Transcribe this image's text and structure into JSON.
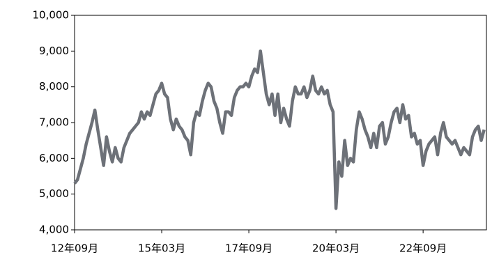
{
  "chart_data": {
    "type": "line",
    "categories": [
      "12年09月",
      null,
      null,
      null,
      null,
      null,
      null,
      null,
      null,
      null,
      null,
      null,
      null,
      null,
      null,
      null,
      null,
      null,
      null,
      null,
      null,
      null,
      null,
      null,
      null,
      null,
      null,
      null,
      null,
      null,
      "15年03月",
      null,
      null,
      null,
      null,
      null,
      null,
      null,
      null,
      null,
      null,
      null,
      null,
      null,
      null,
      null,
      null,
      null,
      null,
      null,
      null,
      null,
      null,
      null,
      null,
      null,
      null,
      null,
      null,
      null,
      "17年09月",
      null,
      null,
      null,
      null,
      null,
      null,
      null,
      null,
      null,
      null,
      null,
      null,
      null,
      null,
      null,
      null,
      null,
      null,
      null,
      null,
      null,
      null,
      null,
      null,
      null,
      null,
      null,
      null,
      null,
      "20年03月",
      null,
      null,
      null,
      null,
      null,
      null,
      null,
      null,
      null,
      null,
      null,
      null,
      null,
      null,
      null,
      null,
      null,
      null,
      null,
      null,
      null,
      null,
      null,
      null,
      null,
      null,
      null,
      null,
      null,
      "22年09月",
      null,
      null,
      null,
      null,
      null,
      null,
      null,
      null,
      null,
      null,
      null,
      null,
      null,
      null,
      null,
      null,
      null,
      null,
      null,
      null,
      null
    ],
    "values": [
      5300,
      5400,
      5700,
      6000,
      6400,
      6700,
      7000,
      7350,
      6800,
      6300,
      5800,
      6600,
      6200,
      5900,
      6300,
      6000,
      5900,
      6300,
      6500,
      6700,
      6800,
      6900,
      7000,
      7300,
      7100,
      7300,
      7200,
      7500,
      7800,
      7900,
      8100,
      7800,
      7700,
      7100,
      6800,
      7100,
      6900,
      6800,
      6600,
      6500,
      6100,
      7000,
      7300,
      7200,
      7600,
      7900,
      8100,
      8000,
      7600,
      7400,
      7000,
      6700,
      7300,
      7300,
      7200,
      7700,
      7900,
      8000,
      8000,
      8100,
      8000,
      8300,
      8500,
      8400,
      9000,
      8400,
      7800,
      7500,
      7800,
      7200,
      7800,
      7000,
      7400,
      7100,
      6900,
      7600,
      8000,
      7800,
      7800,
      8000,
      7700,
      7900,
      8300,
      7900,
      7800,
      8000,
      7800,
      7900,
      7500,
      7300,
      4600,
      5900,
      5500,
      6500,
      5800,
      6000,
      5900,
      6800,
      7300,
      7100,
      6800,
      6600,
      6300,
      6700,
      6300,
      6900,
      7000,
      6400,
      6600,
      7000,
      7300,
      7400,
      7000,
      7500,
      7100,
      7200,
      6600,
      6700,
      6400,
      6500,
      5800,
      6200,
      6400,
      6500,
      6600,
      6100,
      6700,
      7000,
      6600,
      6500,
      6400,
      6500,
      6300,
      6100,
      6300,
      6200,
      6100,
      6600,
      6800,
      6900,
      6500,
      6800
    ],
    "color": "#6d7178",
    "ylim": [
      4000,
      10000
    ],
    "yticks": [
      {
        "value": 4000,
        "label": "4,000"
      },
      {
        "value": 5000,
        "label": "5,000"
      },
      {
        "value": 6000,
        "label": "6,000"
      },
      {
        "value": 7000,
        "label": "7,000"
      },
      {
        "value": 8000,
        "label": "8,000"
      },
      {
        "value": 9000,
        "label": "9,000"
      },
      {
        "value": 10000,
        "label": "10,000"
      }
    ]
  }
}
